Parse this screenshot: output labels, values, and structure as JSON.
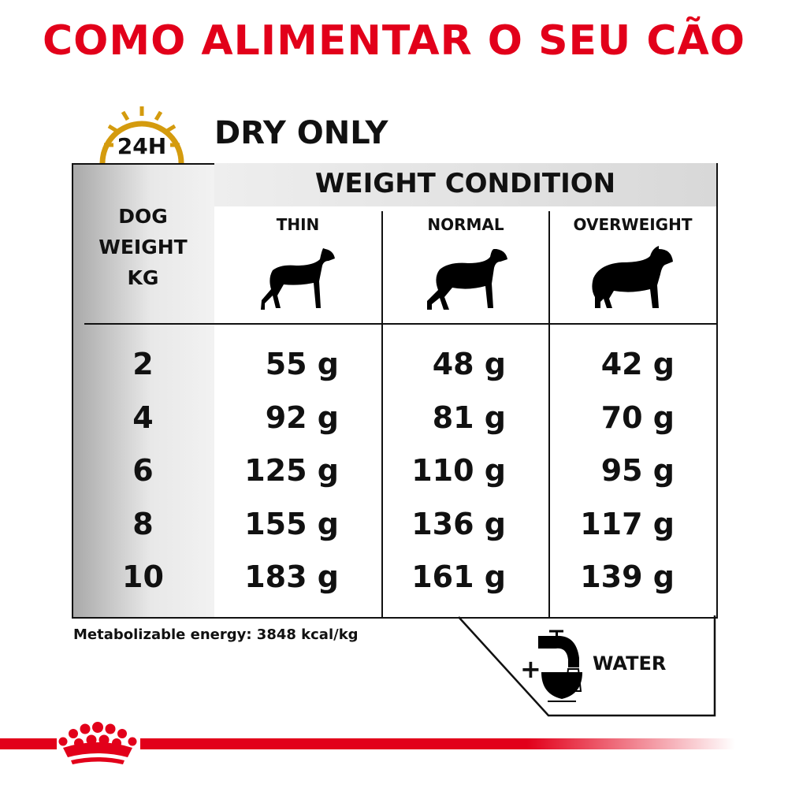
{
  "title": "COMO ALIMENTAR O SEU CÃO",
  "timer_icon": {
    "label": "24H",
    "color": "#d49b0e"
  },
  "subtitle": "DRY ONLY",
  "table": {
    "header": "WEIGHT CONDITION",
    "row_header_lines": [
      "DOG",
      "WEIGHT",
      "KG"
    ],
    "columns": [
      "THIN",
      "NORMAL",
      "OVERWEIGHT"
    ],
    "rows": [
      {
        "kg": "2",
        "values": [
          "55 g",
          "48 g",
          "42 g"
        ]
      },
      {
        "kg": "4",
        "values": [
          "92 g",
          "81 g",
          "70 g"
        ]
      },
      {
        "kg": "6",
        "values": [
          "125 g",
          "110 g",
          "95 g"
        ]
      },
      {
        "kg": "8",
        "values": [
          "155 g",
          "136 g",
          "117 g"
        ]
      },
      {
        "kg": "10",
        "values": [
          "183 g",
          "161 g",
          "139 g"
        ]
      }
    ]
  },
  "energy": "Metabolizable energy: 3848 kcal/kg",
  "water": {
    "plus": "+",
    "label": "WATER"
  },
  "brand_color": "#e2001a"
}
